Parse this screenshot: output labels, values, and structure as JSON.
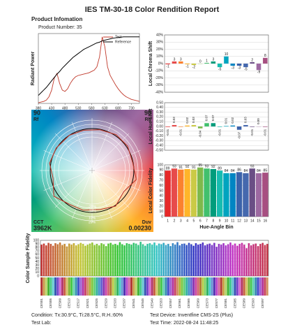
{
  "header": {
    "title": "IES TM-30-18 Color Rendition Report",
    "section": "Product Infomation",
    "product": "Product Number: 35"
  },
  "chart_data": [
    {
      "type": "line",
      "y_label": "Radiant Power",
      "xlim": [
        380,
        760
      ],
      "xticks": [
        380,
        430,
        480,
        530,
        580,
        630,
        680,
        730
      ],
      "ylim": [
        0,
        1.05
      ],
      "x": [
        380,
        390,
        400,
        410,
        420,
        430,
        440,
        450,
        460,
        470,
        480,
        490,
        500,
        510,
        520,
        530,
        540,
        550,
        560,
        570,
        580,
        590,
        600,
        610,
        620,
        630,
        640,
        650,
        660,
        670,
        680,
        690,
        700,
        710,
        720,
        730,
        740,
        750,
        760
      ],
      "series": [
        {
          "name": "Test",
          "color": "#c0392b",
          "values": [
            0.01,
            0.02,
            0.03,
            0.05,
            0.1,
            0.2,
            0.38,
            0.45,
            0.3,
            0.2,
            0.18,
            0.22,
            0.3,
            0.36,
            0.4,
            0.42,
            0.43,
            0.44,
            0.45,
            0.46,
            0.48,
            0.5,
            0.55,
            0.7,
            1.0,
            0.85,
            0.55,
            0.42,
            0.35,
            0.28,
            0.22,
            0.17,
            0.13,
            0.1,
            0.08,
            0.06,
            0.05,
            0.04,
            0.03
          ]
        },
        {
          "name": "Reference",
          "color": "#000000",
          "values": [
            0.12,
            0.16,
            0.2,
            0.24,
            0.29,
            0.34,
            0.39,
            0.44,
            0.48,
            0.53,
            0.57,
            0.61,
            0.65,
            0.69,
            0.72,
            0.75,
            0.78,
            0.81,
            0.83,
            0.85,
            0.87,
            0.89,
            0.91,
            0.92,
            0.94,
            0.95,
            0.96,
            0.97,
            0.98,
            0.985,
            0.99,
            0.995,
            1.0,
            1.0,
            1.0,
            1.0,
            1.0,
            1.0,
            1.0
          ]
        }
      ]
    },
    {
      "type": "bar",
      "y_label": "Local Chroma Shift",
      "ylim": [
        -40,
        40
      ],
      "yticks": [
        {
          "value": 40,
          "label": "40%"
        },
        {
          "value": 30,
          "label": "30%"
        },
        {
          "value": 20,
          "label": "20%"
        },
        {
          "value": 10,
          "label": "10%"
        },
        {
          "value": 0,
          "label": "0%"
        },
        {
          "value": -10,
          "label": "-10%"
        },
        {
          "value": -20,
          "label": "-20%"
        },
        {
          "value": -30,
          "label": "-30%"
        },
        {
          "value": -40,
          "label": "-40%"
        }
      ],
      "values": [
        -1,
        3,
        3,
        -1,
        -2,
        0,
        1,
        3,
        -5,
        10,
        -3,
        -3,
        -5,
        2,
        -9,
        8
      ],
      "grid": true,
      "colors": [
        "#e62828",
        "#e74b4b",
        "#fb812e",
        "#ffb529",
        "#cbca46",
        "#7eb94c",
        "#41c06d",
        "#009c7c",
        "#16bcb0",
        "#00a4bf",
        "#0085c3",
        "#3b62aa",
        "#4568ae",
        "#6a4e85",
        "#9d69a1",
        "#a74f81"
      ]
    },
    {
      "type": "bar",
      "y_label": "Local Hue Shift",
      "ylim": [
        -0.5,
        0.5
      ],
      "yticks": [
        {
          "value": 0.5,
          "label": "0.50"
        },
        {
          "value": 0.4,
          "label": "0.40"
        },
        {
          "value": 0.3,
          "label": "0.30"
        },
        {
          "value": 0.2,
          "label": "0.20"
        },
        {
          "value": 0.1,
          "label": "0.10"
        },
        {
          "value": 0,
          "label": "0.00"
        },
        {
          "value": -0.1,
          "label": "-0.10"
        },
        {
          "value": -0.2,
          "label": "-0.20"
        },
        {
          "value": -0.3,
          "label": "-0.30"
        },
        {
          "value": -0.4,
          "label": "-0.40"
        },
        {
          "value": -0.5,
          "label": "-0.50"
        }
      ],
      "values": [
        -0.01,
        0.03,
        -0.01,
        0.02,
        0.03,
        -0.04,
        0.07,
        0.07,
        -0.01,
        0.01,
        0.02,
        -0.07,
        0.03,
        -0.01,
        0,
        -0.01
      ],
      "value_labels": [
        "-0.01",
        "0.03",
        "-0.01",
        "0.02",
        "0.03",
        "-0.04",
        "0.07",
        "0.07",
        "-0.01",
        "0.01",
        "0.02",
        "-0.07",
        "0.03",
        "-0.01",
        "0.00",
        "-0.01"
      ],
      "grid": true,
      "colors": [
        "#e62828",
        "#e74b4b",
        "#fb812e",
        "#ffb529",
        "#cbca46",
        "#7eb94c",
        "#41c06d",
        "#009c7c",
        "#16bcb0",
        "#00a4bf",
        "#0085c3",
        "#3b62aa",
        "#4568ae",
        "#6a4e85",
        "#9d69a1",
        "#a74f81"
      ]
    },
    {
      "type": "bar",
      "y_label": "Local Color Fidelity",
      "x_label": "Hue-Angle Bin",
      "ylim": [
        0,
        100
      ],
      "yticks": [
        0,
        10,
        20,
        30,
        40,
        50,
        60,
        70,
        80,
        90,
        100
      ],
      "categories": [
        "1",
        "2",
        "3",
        "4",
        "5",
        "6",
        "7",
        "8",
        "9",
        "10",
        "11",
        "12",
        "13",
        "14",
        "15",
        "16"
      ],
      "values": [
        89,
        93,
        91,
        92,
        91,
        95,
        93,
        92,
        89,
        84,
        84,
        86,
        84,
        93,
        84,
        85
      ],
      "grid": true,
      "colors": [
        "#e62828",
        "#e74b4b",
        "#fb812e",
        "#ffb529",
        "#cbca46",
        "#7eb94c",
        "#41c06d",
        "#009c7c",
        "#16bcb0",
        "#00a4bf",
        "#0085c3",
        "#3b62aa",
        "#4568ae",
        "#6a4e85",
        "#9d69a1",
        "#a74f81"
      ]
    },
    {
      "type": "bar",
      "y_label": "Color Sample Fidelity",
      "ylim": [
        0,
        100
      ],
      "yticks": [
        0,
        10,
        20,
        30,
        40,
        50,
        60,
        70,
        80,
        90,
        100
      ],
      "grid": true,
      "categories": [
        "CES01",
        null,
        null,
        null,
        "CES05",
        null,
        null,
        null,
        "CES09",
        null,
        null,
        null,
        "CES13",
        null,
        null,
        null,
        "CES17",
        null,
        null,
        null,
        "CES21",
        null,
        null,
        null,
        "CES25",
        null,
        null,
        null,
        "CES29",
        null,
        null,
        null,
        "CES33",
        null,
        null,
        null,
        "CES37",
        null,
        null,
        null,
        "CES41",
        null,
        null,
        null,
        "CES45",
        null,
        null,
        null,
        "CES49",
        null,
        null,
        null,
        "CES53",
        null,
        null,
        null,
        "CES57",
        null,
        null,
        null,
        "CES61",
        null,
        null,
        null,
        "CES65",
        null,
        null,
        null,
        "CES69",
        null,
        null,
        null,
        "CES73",
        null,
        null,
        null,
        "CES77",
        null,
        null,
        null,
        "CES81",
        null,
        null,
        null,
        "CES85",
        null,
        null,
        null,
        "CES89",
        null,
        null,
        null,
        "CES93",
        null,
        null,
        null,
        "CES97",
        null,
        null
      ],
      "values": [
        88,
        91,
        86,
        93,
        90,
        85,
        92,
        89,
        94,
        87,
        90,
        83,
        91,
        88,
        92,
        86,
        89,
        93,
        90,
        85,
        88,
        91,
        94,
        87,
        90,
        86,
        92,
        89,
        84,
        91,
        93,
        88,
        90,
        87,
        95,
        89,
        86,
        92,
        90,
        88,
        93,
        91,
        87,
        96,
        89,
        85,
        90,
        92,
        88,
        94,
        86,
        91,
        89,
        93,
        87,
        90,
        84,
        92,
        88,
        95,
        86,
        90,
        91,
        87,
        93,
        89,
        85,
        92,
        88,
        90,
        94,
        86,
        89,
        91,
        87,
        93,
        82,
        90,
        88,
        92,
        86,
        89,
        94,
        87,
        91,
        85,
        90,
        93,
        88,
        78,
        92,
        86,
        89,
        91,
        84,
        90,
        93,
        87,
        90
      ]
    }
  ],
  "vector_graphic": {
    "rf": "90",
    "rf_label": "Rf",
    "rg": "98",
    "rg_label": "Rg",
    "cct_label": "CCT",
    "cct": "3962K",
    "duv_label": "Duv",
    "duv": "0.00230",
    "ring_labels": [
      "-20%",
      "-10%",
      "10%",
      "20%"
    ]
  },
  "footer": {
    "condition": "Condition: Tx:30.9°C, Ti:28.5°C, R.H.:60%",
    "device": "Test Device: Inventfine CMS-2S (Plus)",
    "lab": "Test Lab:",
    "time": "Test Time: 2022-08-24 11:48:25"
  }
}
